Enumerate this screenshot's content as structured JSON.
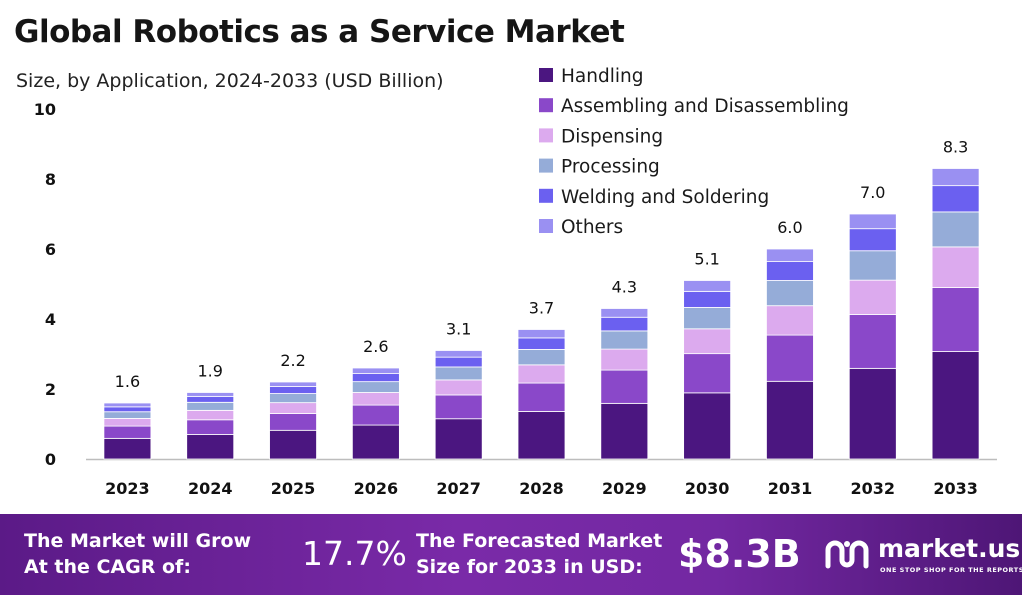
{
  "title": "Global Robotics as a Service Market",
  "subtitle": "Size, by Application, 2024-2033 (USD Billion)",
  "footer": {
    "cagr_label": "The Market will Grow At the CAGR of:",
    "cagr_value": "17.7%",
    "size_label": "The Forecasted Market Size for 2033 in USD:",
    "size_value": "$8.3B",
    "brand_name": "market.us",
    "brand_tagline": "ONE STOP SHOP FOR THE REPORTS",
    "brand_icon": "market-us-logo-icon"
  },
  "colors": {
    "Handling": "#4b1680",
    "Assembling and Disassembling": "#8a48c9",
    "Dispensing": "#dcaaee",
    "Processing": "#95acd8",
    "Welding and Soldering": "#6b60f0",
    "Others": "#9a90f2",
    "footer": "#6a239a"
  },
  "chart_data": {
    "type": "bar",
    "stacked": true,
    "title": "Global Robotics as a Service Market",
    "subtitle": "Size, by Application, 2024-2033 (USD Billion)",
    "categories": [
      "2023",
      "2024",
      "2025",
      "2026",
      "2027",
      "2028",
      "2029",
      "2030",
      "2031",
      "2032",
      "2033"
    ],
    "totals": [
      "1.6",
      "1.9",
      "2.2",
      "2.6",
      "3.1",
      "3.7",
      "4.3",
      "5.1",
      "6.0",
      "7.0",
      "8.3"
    ],
    "series": [
      {
        "name": "Handling",
        "values": [
          0.59,
          0.7,
          0.82,
          0.97,
          1.15,
          1.36,
          1.59,
          1.89,
          2.22,
          2.59,
          3.07
        ]
      },
      {
        "name": "Assembling and Disassembling",
        "values": [
          0.35,
          0.42,
          0.48,
          0.57,
          0.68,
          0.81,
          0.95,
          1.12,
          1.32,
          1.54,
          1.83
        ]
      },
      {
        "name": "Dispensing",
        "values": [
          0.22,
          0.27,
          0.31,
          0.36,
          0.43,
          0.52,
          0.6,
          0.71,
          0.84,
          0.98,
          1.16
        ]
      },
      {
        "name": "Processing",
        "values": [
          0.19,
          0.23,
          0.26,
          0.31,
          0.37,
          0.44,
          0.52,
          0.61,
          0.72,
          0.84,
          1.0
        ]
      },
      {
        "name": "Welding and Soldering",
        "values": [
          0.14,
          0.17,
          0.2,
          0.23,
          0.28,
          0.33,
          0.39,
          0.46,
          0.54,
          0.63,
          0.75
        ]
      },
      {
        "name": "Others",
        "values": [
          0.11,
          0.11,
          0.13,
          0.16,
          0.19,
          0.24,
          0.25,
          0.31,
          0.36,
          0.42,
          0.49
        ]
      }
    ],
    "ylim": [
      0,
      10
    ],
    "yticks": [
      0,
      2,
      4,
      6,
      8,
      10
    ],
    "grid": false,
    "legend": "top-right"
  }
}
